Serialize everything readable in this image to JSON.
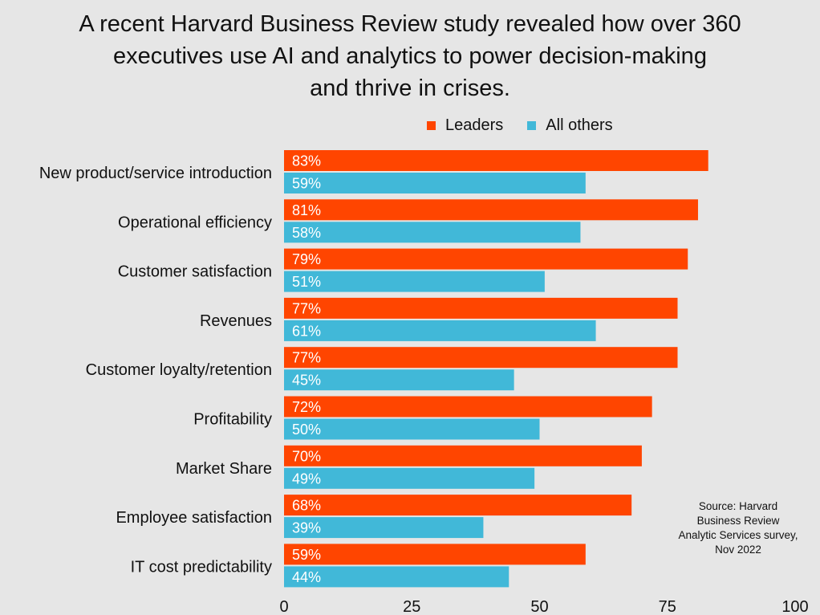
{
  "title_lines": [
    "A recent Harvard Business Review study revealed how over 360",
    "executives use AI and analytics to power decision-making",
    "and thrive in crises."
  ],
  "source_lines": [
    "Source: Harvard",
    "Business Review",
    "Analytic Services survey,",
    "Nov 2022"
  ],
  "chart_data": {
    "type": "bar",
    "orientation": "horizontal",
    "title": "A recent Harvard Business Review study revealed how over 360 executives use AI and analytics to power decision-making and thrive in crises.",
    "categories": [
      "New product/service introduction",
      "Operational efficiency",
      "Customer satisfaction",
      "Revenues",
      "Customer loyalty/retention",
      "Profitability",
      "Market Share",
      "Employee satisfaction",
      "IT cost predictability"
    ],
    "series": [
      {
        "name": "Leaders",
        "color": "#ff4500",
        "values": [
          83,
          81,
          79,
          77,
          77,
          72,
          70,
          68,
          59
        ]
      },
      {
        "name": "All others",
        "color": "#41b8d8",
        "values": [
          59,
          58,
          51,
          61,
          45,
          50,
          49,
          39,
          44
        ]
      }
    ],
    "value_suffix": "%",
    "xlim": [
      0,
      100
    ],
    "x_ticks": [
      0,
      25,
      50,
      75,
      100
    ],
    "xlabel": "",
    "ylabel": "",
    "grid": false,
    "legend_position": "top"
  }
}
